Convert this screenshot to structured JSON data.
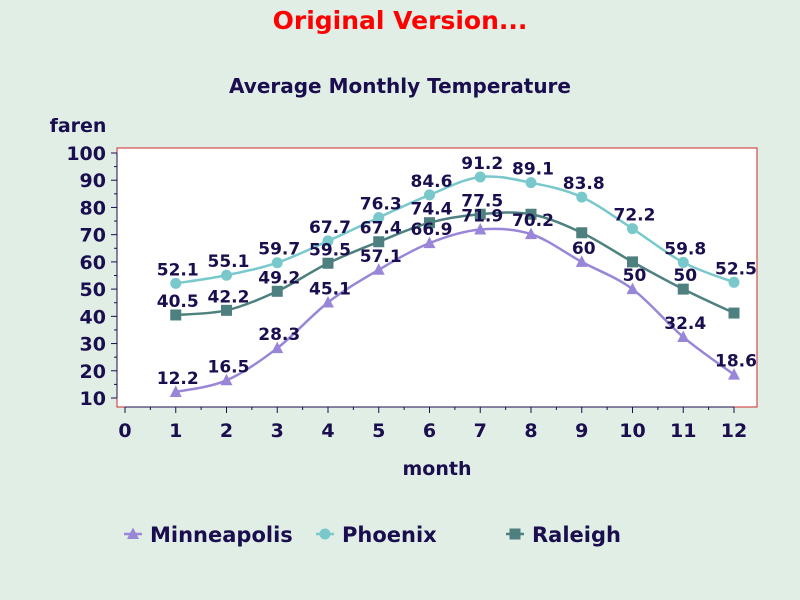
{
  "heading": "Original Version...",
  "chart_data": {
    "type": "line",
    "title": "Average Monthly Temperature",
    "xlabel": "month",
    "ylabel": "faren",
    "xlim": [
      0,
      12
    ],
    "ylim": [
      10,
      100
    ],
    "x_ticks": [
      "0",
      "1",
      "2",
      "3",
      "4",
      "5",
      "6",
      "7",
      "8",
      "9",
      "10",
      "11",
      "12"
    ],
    "y_ticks": [
      "10",
      "20",
      "30",
      "40",
      "50",
      "60",
      "70",
      "80",
      "90",
      "100"
    ],
    "x": [
      1,
      2,
      3,
      4,
      5,
      6,
      7,
      8,
      9,
      10,
      11,
      12
    ],
    "grid": false,
    "legend_position": "bottom",
    "series": [
      {
        "name": "Minneapolis",
        "marker": "triangle",
        "color": "#9a86d8",
        "values": [
          12.2,
          16.5,
          28.3,
          45.1,
          57.1,
          66.9,
          71.9,
          70.2,
          60,
          50,
          32.4,
          18.6
        ],
        "labels": [
          "12.2",
          "16.5",
          "28.3",
          "45.1",
          "57.1",
          "66.9",
          "71.9",
          "70.2",
          "60",
          "50",
          "32.4",
          "18.6"
        ]
      },
      {
        "name": "Phoenix",
        "marker": "circle",
        "color": "#78c8cc",
        "values": [
          52.1,
          55.1,
          59.7,
          67.7,
          76.3,
          84.6,
          91.2,
          89.1,
          83.8,
          72.2,
          59.8,
          52.5
        ],
        "labels": [
          "52.1",
          "55.1",
          "59.7",
          "67.7",
          "76.3",
          "84.6",
          "91.2",
          "89.1",
          "83.8",
          "72.2",
          "59.8",
          "52.5"
        ]
      },
      {
        "name": "Raleigh",
        "marker": "square",
        "color": "#4e8080",
        "values": [
          40.5,
          42.2,
          49.2,
          59.5,
          67.4,
          74.4,
          77.5,
          77.5,
          70.7,
          60,
          50,
          41.2
        ],
        "labels": [
          "40.5",
          "42.2",
          "49.2",
          "59.5",
          "67.4",
          "74.4",
          "77.5",
          "",
          "",
          "",
          "50",
          ""
        ]
      }
    ]
  }
}
